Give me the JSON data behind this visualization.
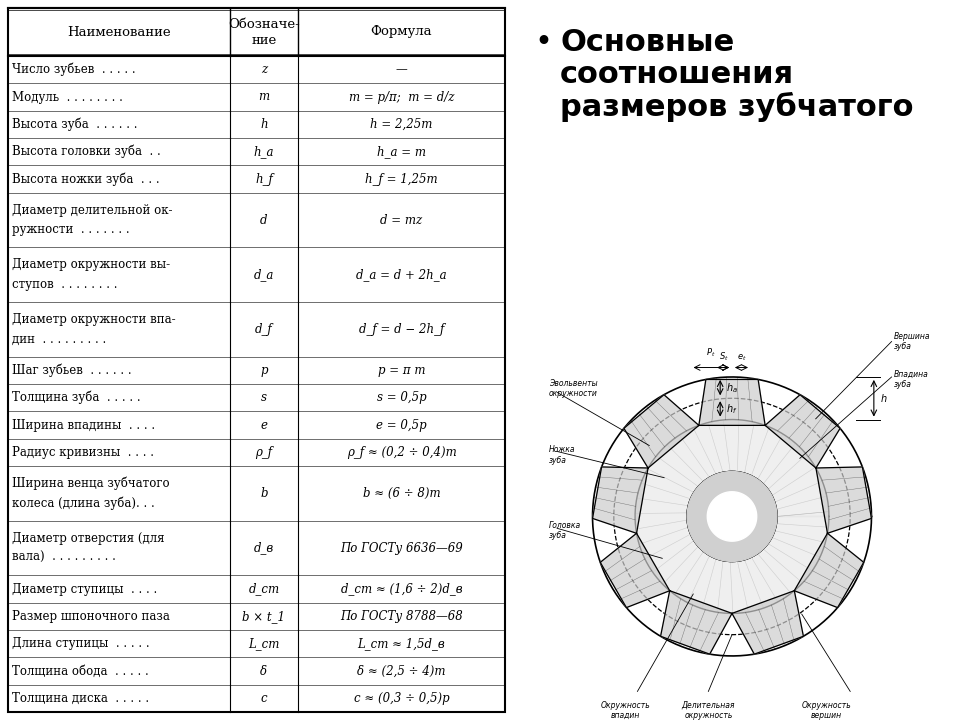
{
  "table_headers": [
    "Наименование",
    "Обозначе-\nние",
    "Формула"
  ],
  "rows": [
    [
      "Число зубьев  . . . . .",
      "z",
      "—",
      1
    ],
    [
      "Модуль  . . . . . . . .",
      "m",
      "m = p/π;  m = d/z",
      1
    ],
    [
      "Высота зуба  . . . . . .",
      "h",
      "h = 2,25m",
      1
    ],
    [
      "Высота головки зуба  . .",
      "h_a",
      "h_a = m",
      1
    ],
    [
      "Высота ножки зуба  . . .",
      "h_f",
      "h_f = 1,25m",
      1
    ],
    [
      "Диаметр делительной ок-\nружности  . . . . . . .",
      "d",
      "d = mz",
      2
    ],
    [
      "Диаметр окружности вы-\nступов  . . . . . . . .",
      "d_a",
      "d_a = d + 2h_a",
      2
    ],
    [
      "Диаметр окружности впа-\nдин  . . . . . . . . .",
      "d_f",
      "d_f = d − 2h_f",
      2
    ],
    [
      "Шаг зубьев  . . . . . .",
      "p",
      "p = π m",
      1
    ],
    [
      "Толщина зуба  . . . . .",
      "s",
      "s = 0,5p",
      1
    ],
    [
      "Ширина впадины  . . . .",
      "e",
      "e = 0,5p",
      1
    ],
    [
      "Радиус кривизны  . . . .",
      "ρ_f",
      "ρ_f ≈ (0,2 ÷ 0,4)m",
      1
    ],
    [
      "Ширина венца зубчатого\nколеса (длина зуба). . .",
      "b",
      "b ≈ (6 ÷ 8)m",
      2
    ],
    [
      "Диаметр отверстия (для\nвала)  . . . . . . . . .",
      "d_в",
      "По ГОСТу 6636—69",
      2
    ],
    [
      "Диаметр ступицы  . . . .",
      "d_ст",
      "d_ст ≈ (1,6 ÷ 2)d_в",
      1
    ],
    [
      "Размер шпоночного паза",
      "b × t_1",
      "По ГОСТу 8788—68",
      1
    ],
    [
      "Длина ступицы  . . . . .",
      "L_ст",
      "L_ст ≈ 1,5d_в",
      1
    ],
    [
      "Толщина обода  . . . . .",
      "δ",
      "δ ≈ (2,5 ÷ 4)m",
      1
    ],
    [
      "Толщина диска  . . . . .",
      "c",
      "c ≈ (0,3 ÷ 0,5)p",
      1
    ]
  ],
  "right_title": "•   Основные\n    соотношения\n    размеров зубчатого",
  "bg_color": "#ffffff"
}
